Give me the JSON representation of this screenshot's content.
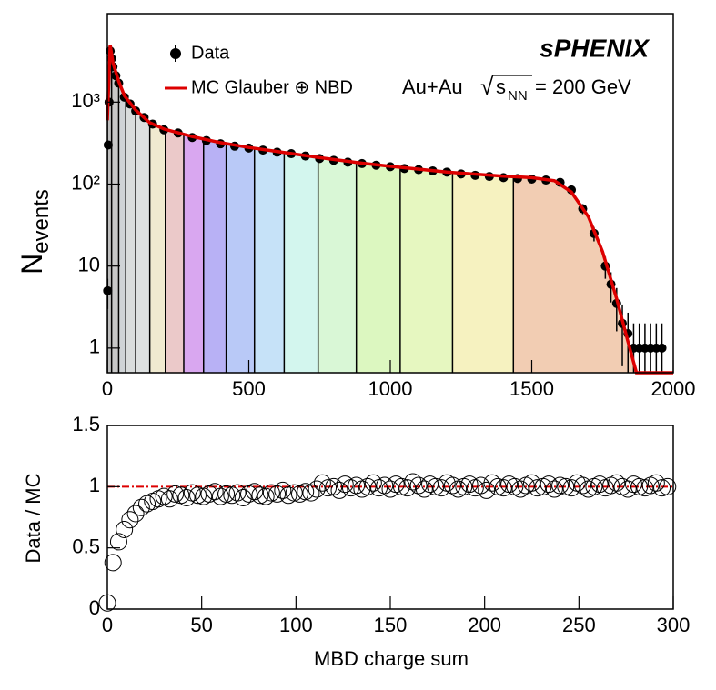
{
  "chart_data": [
    {
      "type": "spectrum",
      "ylabel": {
        "main": "N",
        "sub": "events"
      },
      "legend": {
        "data": "Data",
        "fit": "MC Glauber ⊕ NBD"
      },
      "experiment": "sPHENIX",
      "system": "Au+Au",
      "energy": {
        "root": "√",
        "symbol": "s",
        "subscript": "NN",
        "text": "= 200 GeV"
      },
      "log_y": true,
      "xlim": [
        0,
        2000
      ],
      "xticks": [
        0,
        500,
        1000,
        1500,
        2000
      ],
      "ylim": [
        0.5,
        12000
      ],
      "yticks": [
        1,
        10,
        {
          "value": 100,
          "label": "10²"
        },
        {
          "value": 1000,
          "label": "10³"
        }
      ],
      "bands": {
        "edges": [
          0,
          15,
          40,
          65,
          100,
          150,
          205,
          270,
          340,
          420,
          520,
          625,
          745,
          880,
          1035,
          1220,
          1435,
          1900
        ],
        "colors": [
          "#bdbdbd",
          "#c8c8c8",
          "#cfd3d6",
          "#d9dcdc",
          "#dde0e0",
          "#f0ead0",
          "#ebc9c9",
          "#d9a7f0",
          "#b8b1f5",
          "#b9c9f7",
          "#c6e2f8",
          "#d3f6ee",
          "#d9f7d6",
          "#dcf7c0",
          "#e6f7c0",
          "#f6f2c0",
          "#f2cdb3"
        ]
      },
      "fit": {
        "color": "#dd0000",
        "x": [
          0,
          10,
          20,
          40,
          60,
          100,
          150,
          200,
          300,
          400,
          500,
          600,
          750,
          900,
          1000,
          1200,
          1400,
          1500,
          1580,
          1640,
          1700,
          1750,
          1800,
          1840,
          1870,
          1880,
          2000
        ],
        "values": [
          600,
          5000,
          3000,
          1800,
          1200,
          800,
          560,
          470,
          380,
          320,
          280,
          250,
          210,
          180,
          165,
          140,
          125,
          120,
          110,
          80,
          40,
          15,
          4,
          1.2,
          0.5,
          0.5,
          0.5
        ]
      },
      "data": {
        "color": "#000000",
        "x": [
          1,
          3,
          6,
          10,
          15,
          20,
          30,
          40,
          60,
          80,
          100,
          130,
          160,
          200,
          250,
          300,
          350,
          400,
          450,
          500,
          550,
          600,
          650,
          700,
          750,
          800,
          850,
          900,
          950,
          1000,
          1050,
          1100,
          1150,
          1200,
          1250,
          1300,
          1350,
          1400,
          1450,
          1500,
          1550,
          1600,
          1640,
          1680,
          1720,
          1760,
          1780,
          1800,
          1820,
          1840,
          1860,
          1880,
          1900,
          1920,
          1940,
          1960
        ],
        "values": [
          5,
          300,
          1000,
          4200,
          3400,
          2700,
          2100,
          1700,
          1150,
          950,
          780,
          650,
          540,
          460,
          420,
          370,
          340,
          310,
          290,
          275,
          260,
          245,
          235,
          220,
          205,
          195,
          185,
          178,
          170,
          163,
          155,
          150,
          145,
          140,
          133,
          128,
          124,
          120,
          117,
          115,
          112,
          105,
          85,
          50,
          25,
          10,
          6,
          3.5,
          2,
          1.5,
          1,
          1,
          1,
          1,
          1,
          1
        ],
        "errors": [
          2,
          17,
          32,
          65,
          58,
          52,
          46,
          41,
          34,
          31,
          28,
          25,
          23,
          21,
          20,
          19,
          18,
          18,
          17,
          17,
          16,
          16,
          15,
          15,
          14,
          14,
          14,
          13,
          13,
          13,
          12,
          12,
          12,
          12,
          12,
          11,
          11,
          11,
          11,
          11,
          11,
          10,
          9,
          7,
          5,
          3,
          2.4,
          1.9,
          1.4,
          1.2,
          1,
          1,
          1,
          1,
          1,
          1
        ]
      }
    },
    {
      "type": "ratio",
      "xlabel": "MBD charge sum",
      "ylabel": "Data / MC",
      "xlim": [
        0,
        300
      ],
      "xticks": [
        0,
        50,
        100,
        150,
        200,
        250,
        300
      ],
      "ylim": [
        0,
        1.5
      ],
      "yticks": [
        0,
        0.5,
        1,
        1.5
      ],
      "reference": 1,
      "reference_color": "#dd0000",
      "x": [
        0,
        3,
        6,
        9,
        12,
        15,
        18,
        21,
        24,
        27,
        30,
        33,
        36,
        39,
        42,
        45,
        48,
        51,
        54,
        57,
        60,
        63,
        66,
        69,
        72,
        75,
        78,
        81,
        84,
        87,
        90,
        93,
        96,
        99,
        102,
        105,
        108,
        111,
        114,
        117,
        120,
        123,
        126,
        129,
        132,
        135,
        138,
        141,
        144,
        147,
        150,
        153,
        156,
        159,
        162,
        165,
        168,
        171,
        174,
        177,
        180,
        183,
        186,
        189,
        192,
        195,
        198,
        201,
        204,
        207,
        210,
        213,
        216,
        219,
        222,
        225,
        228,
        231,
        234,
        237,
        240,
        243,
        246,
        249,
        252,
        255,
        258,
        261,
        264,
        267,
        270,
        273,
        276,
        279,
        282,
        285,
        288,
        291,
        294,
        297
      ],
      "values": [
        0.05,
        0.38,
        0.55,
        0.65,
        0.73,
        0.78,
        0.83,
        0.86,
        0.88,
        0.9,
        0.92,
        0.9,
        0.94,
        0.93,
        0.91,
        0.95,
        0.93,
        0.92,
        0.94,
        0.96,
        0.92,
        0.94,
        0.93,
        0.95,
        0.91,
        0.94,
        0.96,
        0.93,
        0.92,
        0.95,
        0.94,
        0.97,
        0.93,
        0.95,
        0.94,
        0.96,
        0.95,
        0.98,
        1.03,
        0.99,
        1.0,
        0.97,
        1.02,
        0.99,
        1.01,
        0.98,
        1.0,
        1.03,
        0.99,
        1.01,
        0.98,
        1.02,
        1.0,
        0.99,
        1.04,
        1.01,
        0.98,
        1.02,
        1.0,
        0.99,
        1.03,
        1.01,
        0.98,
        1.0,
        1.02,
        0.99,
        1.01,
        0.97,
        1.03,
        1.0,
        0.99,
        1.02,
        1.0,
        0.98,
        1.01,
        1.03,
        0.99,
        1.0,
        1.02,
        0.98,
        1.01,
        1.0,
        0.99,
        1.03,
        1.01,
        0.98,
        1.0,
        1.02,
        0.99,
        1.01,
        1.03,
        1.0,
        0.98,
        1.02,
        1.0,
        0.99,
        1.01,
        1.03,
        0.99,
        1.0
      ]
    }
  ]
}
